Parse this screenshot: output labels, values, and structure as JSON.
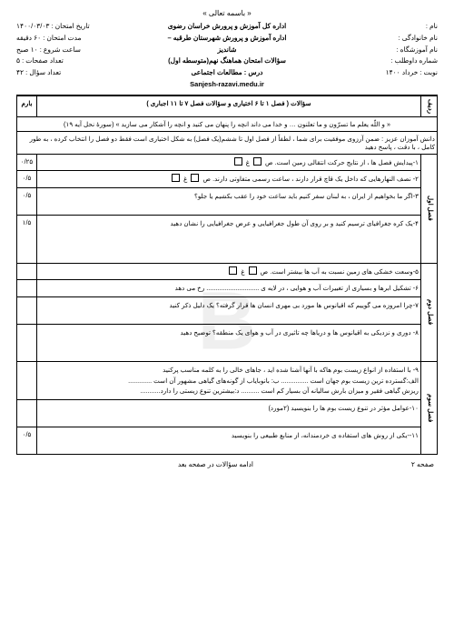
{
  "bismillah": "« باسمه تعالی »",
  "header": {
    "right": {
      "l1": "نام :",
      "l2": "نام خانوادگی :",
      "l3": "نام آموزشگاه :",
      "l4": "شماره داوطلب :",
      "l5": "نوبت : خرداد ۱۴۰۰"
    },
    "center": {
      "l1": "اداره کل آموزش و پرورش خراسان رضوی",
      "l2": "اداره آموزش و پرورش شهرستان طرقبه – شاندیز",
      "l3": "سؤالات امتحان هماهنگ نهم(متوسطه اول)",
      "l4_a": "درس :",
      "l4_b": "مطالعات اجتماعی",
      "l5": "Sanjesh-razavi.medu.ir"
    },
    "left": {
      "l1": "تاریخ امتحان : ۱۴۰۰/۰۳/۰۳",
      "l2": "مدت امتحان : ۶۰ دقیقه",
      "l3": "ساعت شروع : ۱۰ صبح",
      "l4": "تعداد صفحات : ۵",
      "l5": "تعداد سؤال : ۴۲"
    }
  },
  "tableHead": {
    "radif": "ردیف",
    "sawal": "سؤالات ( فصل ۱ تا ۶ اختیاری و سؤالات فصل ۷ تا ۱۱ اجباری )",
    "barom": "بارم"
  },
  "quran": "« و اللّه یعلم ما تسرّون و ما تعلنون … و خدا می داند انچه را پنهان می کنید و انچه را آشکار می سازید » (سورهٔ نحل آیه ۱۹)",
  "instr": "دانش آموزان عزیز : ضمن آرزوی موفقیت برای شما ، لطفاً از فصل اول تا ششم(یک فصل) به شکل اختیاری است فقط دو فصل را انتخاب کرده ، به طور کامل ، با دقت ، پاسخ دهید",
  "rows": [
    {
      "side": "فصل اول",
      "score": "۰/۲۵",
      "lines": [
        {
          "n": "۱",
          "t": "-پیدایش فصل ها ، از نتایج حرکت انتقالی زمین است.         ص",
          "opt": true,
          "t2": "     غ",
          "opt2": true
        }
      ],
      "extra": [
        {
          "score": "۰/۵",
          "n": "۲",
          "t": "- نصف النهارهایی که داخل یک قاچ قرار دارند ، ساعت رسمی متفاوتی دارند.   ص",
          "opt": true,
          "t2": "     غ",
          "opt2": true
        },
        {
          "score": "۰/۵",
          "n": "۳",
          "t": "-اگر ما بخواهیم از ایران ، به لبنان سفر کنیم باید ساعت خود را عقب بکشیم یا جلو؟"
        },
        {
          "score": "۱/۵",
          "n": "۴",
          "t": "-یک کره جغرافیای ترسیم کنید و بر روی آن طول جغرافیایی و عرض جغرافیایی را نشان دهید"
        }
      ]
    },
    {
      "side": "فصل دوم",
      "score": "",
      "lines": [
        {
          "n": "۵",
          "t": "-وسعت خشکی های زمین نسبت به آب ها بیشتر است.      ص",
          "opt": true,
          "t2": "      غ",
          "opt2": true
        },
        {
          "n": "۶",
          "t": "- تشکیل ابرها و بسیاری از تغییرات آب و هوایی ، در لایه ی ............................. رخ می دهد"
        },
        {
          "n": "۷",
          "t": "-چرا امروزه می گوییم که اقیانوس ها مورد بی مهری انسان ها قرار گرفته؟ یک دلیل ذکر کنید"
        },
        {
          "n": "۸",
          "t": "- دوری و نزدیکی به اقیانوس ها و دریاها چه تاثیری در آب و هوای یک منطقه؟ توضیح دهید"
        }
      ]
    },
    {
      "side": "فصل سوم",
      "score": "",
      "lines": [
        {
          "n": "۹",
          "t": "- با استفاده از انواع زیست بوم هاکه با آنها آشنا شده اید ، جاهای خالی را به کلمه مناسب پرکنید"
        },
        {
          "n": "",
          "t": "الف:گسترده ترین زیست بوم جهان است ............... ب: بانوبایاب از گونه‌های گیاهی مشهور آن است ............."
        },
        {
          "n": "",
          "t": "ریزش گیاهی فقیر و میزان بارش سالیانه آن بسیار کم است ..........     د:بیشترین تنوع زیستی را دارد..........."
        },
        {
          "n": "۱۰",
          "t": "-عوامل مؤثر در تنوع زیست بوم ها را بنویسید (۲مورد)"
        },
        {
          "score": "۰/۵",
          "n": "۱۱",
          "t": "--یکی از روش های استفاده ی خردمندانه، از منابع طبیعی را بنویسید"
        }
      ]
    }
  ],
  "footer": {
    "right": "صفحه  ۲",
    "center": "ادامه سؤالات در صفحه بعد"
  },
  "watermark": "B"
}
